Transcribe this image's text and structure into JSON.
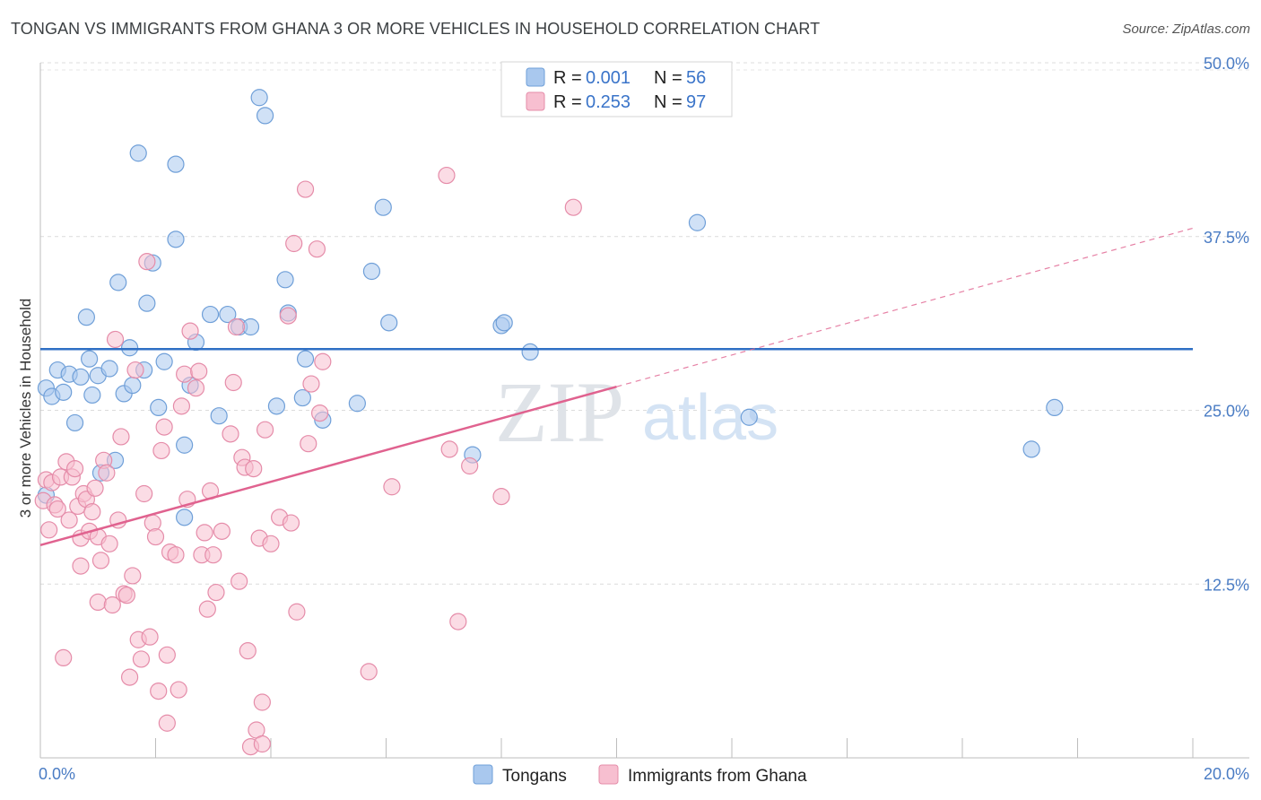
{
  "title": "TONGAN VS IMMIGRANTS FROM GHANA 3 OR MORE VEHICLES IN HOUSEHOLD CORRELATION CHART",
  "source": "Source: ZipAtlas.com",
  "watermark": {
    "zip": "ZIP",
    "atlas": "atlas"
  },
  "chart_data": {
    "type": "scatter",
    "title": "TONGAN VS IMMIGRANTS FROM GHANA 3 OR MORE VEHICLES IN HOUSEHOLD CORRELATION CHART",
    "xlabel": "",
    "ylabel": "3 or more Vehicles in Household",
    "xlim": [
      0,
      20
    ],
    "ylim": [
      0,
      50
    ],
    "x_tick_labels": [
      "0.0%",
      "20.0%"
    ],
    "y_ticks": [
      12.5,
      25.0,
      37.5,
      50.0
    ],
    "y_tick_labels": [
      "12.5%",
      "25.0%",
      "37.5%",
      "50.0%"
    ],
    "grid": true,
    "legend_position": "top-center",
    "stats": [
      {
        "r_label": "R = ",
        "r_value": "0.001",
        "n_label": "N = ",
        "n_value": "56"
      },
      {
        "r_label": "R = ",
        "r_value": "0.253",
        "n_label": "N = ",
        "n_value": "97"
      }
    ],
    "series": [
      {
        "name": "Tongans",
        "color": "#a9c8ee",
        "stroke": "#6f9fd8",
        "line_color": "#2f6fc4",
        "trend": {
          "x": [
            0,
            20
          ],
          "y": [
            29.4,
            29.4
          ]
        },
        "points": [
          [
            0.1,
            18.9
          ],
          [
            0.1,
            26.6
          ],
          [
            0.2,
            26.0
          ],
          [
            0.3,
            27.9
          ],
          [
            0.4,
            26.3
          ],
          [
            0.5,
            27.6
          ],
          [
            0.6,
            24.1
          ],
          [
            0.7,
            27.4
          ],
          [
            0.8,
            31.7
          ],
          [
            0.85,
            28.7
          ],
          [
            0.9,
            26.1
          ],
          [
            1.0,
            27.5
          ],
          [
            1.05,
            20.5
          ],
          [
            1.2,
            28.0
          ],
          [
            1.3,
            21.4
          ],
          [
            1.35,
            34.2
          ],
          [
            1.45,
            26.2
          ],
          [
            1.55,
            29.5
          ],
          [
            1.6,
            26.8
          ],
          [
            1.7,
            43.5
          ],
          [
            1.8,
            27.9
          ],
          [
            1.85,
            32.7
          ],
          [
            1.95,
            35.6
          ],
          [
            2.05,
            25.2
          ],
          [
            2.15,
            28.5
          ],
          [
            2.35,
            42.7
          ],
          [
            2.35,
            37.3
          ],
          [
            2.5,
            22.5
          ],
          [
            2.5,
            17.3
          ],
          [
            2.6,
            26.8
          ],
          [
            2.7,
            29.9
          ],
          [
            2.95,
            31.9
          ],
          [
            3.1,
            24.6
          ],
          [
            3.25,
            31.9
          ],
          [
            3.45,
            31.0
          ],
          [
            3.65,
            31.0
          ],
          [
            3.8,
            47.5
          ],
          [
            3.9,
            46.2
          ],
          [
            4.1,
            25.3
          ],
          [
            4.25,
            34.4
          ],
          [
            4.3,
            32.0
          ],
          [
            4.55,
            25.9
          ],
          [
            4.6,
            28.7
          ],
          [
            4.9,
            24.3
          ],
          [
            5.5,
            25.5
          ],
          [
            5.75,
            35.0
          ],
          [
            5.95,
            39.6
          ],
          [
            6.05,
            31.3
          ],
          [
            7.5,
            21.8
          ],
          [
            8.0,
            31.1
          ],
          [
            8.05,
            31.3
          ],
          [
            8.5,
            29.2
          ],
          [
            11.4,
            38.5
          ],
          [
            12.3,
            24.5
          ],
          [
            17.2,
            22.2
          ],
          [
            17.6,
            25.2
          ]
        ]
      },
      {
        "name": "Immigrants from Ghana",
        "color": "#f7bfd0",
        "stroke": "#e58ca9",
        "line_color": "#e0628f",
        "trend": {
          "x": [
            0,
            10
          ],
          "y": [
            15.3,
            26.7
          ]
        },
        "trend_extension": {
          "x": [
            10,
            20
          ],
          "y": [
            26.7,
            38.1
          ]
        },
        "points": [
          [
            0.05,
            18.5
          ],
          [
            0.1,
            20.0
          ],
          [
            0.15,
            16.4
          ],
          [
            0.2,
            19.8
          ],
          [
            0.25,
            18.2
          ],
          [
            0.3,
            17.9
          ],
          [
            0.35,
            20.2
          ],
          [
            0.4,
            7.2
          ],
          [
            0.45,
            21.3
          ],
          [
            0.5,
            17.1
          ],
          [
            0.55,
            20.2
          ],
          [
            0.6,
            20.8
          ],
          [
            0.65,
            18.1
          ],
          [
            0.7,
            15.8
          ],
          [
            0.7,
            13.8
          ],
          [
            0.75,
            19.0
          ],
          [
            0.8,
            18.6
          ],
          [
            0.85,
            16.3
          ],
          [
            0.9,
            17.7
          ],
          [
            0.95,
            19.4
          ],
          [
            1.0,
            15.9
          ],
          [
            1.0,
            11.2
          ],
          [
            1.05,
            14.2
          ],
          [
            1.1,
            21.4
          ],
          [
            1.15,
            20.5
          ],
          [
            1.2,
            15.4
          ],
          [
            1.25,
            11.0
          ],
          [
            1.3,
            30.1
          ],
          [
            1.35,
            17.1
          ],
          [
            1.4,
            23.1
          ],
          [
            1.45,
            11.8
          ],
          [
            1.5,
            11.7
          ],
          [
            1.55,
            5.8
          ],
          [
            1.6,
            13.1
          ],
          [
            1.65,
            27.9
          ],
          [
            1.7,
            8.5
          ],
          [
            1.75,
            7.1
          ],
          [
            1.8,
            19.0
          ],
          [
            1.85,
            35.7
          ],
          [
            1.9,
            8.7
          ],
          [
            1.95,
            16.9
          ],
          [
            2.0,
            15.9
          ],
          [
            2.05,
            4.8
          ],
          [
            2.1,
            22.1
          ],
          [
            2.15,
            23.8
          ],
          [
            2.2,
            7.4
          ],
          [
            2.2,
            2.5
          ],
          [
            2.25,
            14.8
          ],
          [
            2.35,
            14.6
          ],
          [
            2.4,
            4.9
          ],
          [
            2.45,
            25.3
          ],
          [
            2.5,
            27.6
          ],
          [
            2.55,
            18.6
          ],
          [
            2.6,
            30.7
          ],
          [
            2.7,
            26.6
          ],
          [
            2.75,
            27.8
          ],
          [
            2.8,
            14.6
          ],
          [
            2.85,
            16.2
          ],
          [
            2.9,
            10.7
          ],
          [
            2.95,
            19.2
          ],
          [
            3.0,
            14.6
          ],
          [
            3.05,
            11.9
          ],
          [
            3.15,
            16.3
          ],
          [
            3.3,
            23.3
          ],
          [
            3.35,
            27.0
          ],
          [
            3.4,
            31.0
          ],
          [
            3.45,
            12.7
          ],
          [
            3.5,
            21.6
          ],
          [
            3.55,
            20.9
          ],
          [
            3.6,
            7.7
          ],
          [
            3.65,
            0.8
          ],
          [
            3.7,
            20.8
          ],
          [
            3.75,
            2.0
          ],
          [
            3.8,
            15.8
          ],
          [
            3.85,
            1.0
          ],
          [
            3.85,
            4.0
          ],
          [
            3.9,
            23.6
          ],
          [
            4.0,
            15.4
          ],
          [
            4.15,
            17.3
          ],
          [
            4.3,
            31.8
          ],
          [
            4.35,
            16.9
          ],
          [
            4.4,
            37.0
          ],
          [
            4.45,
            10.5
          ],
          [
            4.6,
            40.9
          ],
          [
            4.65,
            22.6
          ],
          [
            4.7,
            26.9
          ],
          [
            4.8,
            36.6
          ],
          [
            4.85,
            24.8
          ],
          [
            4.9,
            28.5
          ],
          [
            5.7,
            6.2
          ],
          [
            6.1,
            19.5
          ],
          [
            7.05,
            41.9
          ],
          [
            7.1,
            22.2
          ],
          [
            7.25,
            9.8
          ],
          [
            7.45,
            21.0
          ],
          [
            8.0,
            18.8
          ],
          [
            9.25,
            39.6
          ]
        ]
      }
    ]
  },
  "bottom_legend": [
    {
      "label": "Tongans"
    },
    {
      "label": "Immigrants from Ghana"
    }
  ]
}
